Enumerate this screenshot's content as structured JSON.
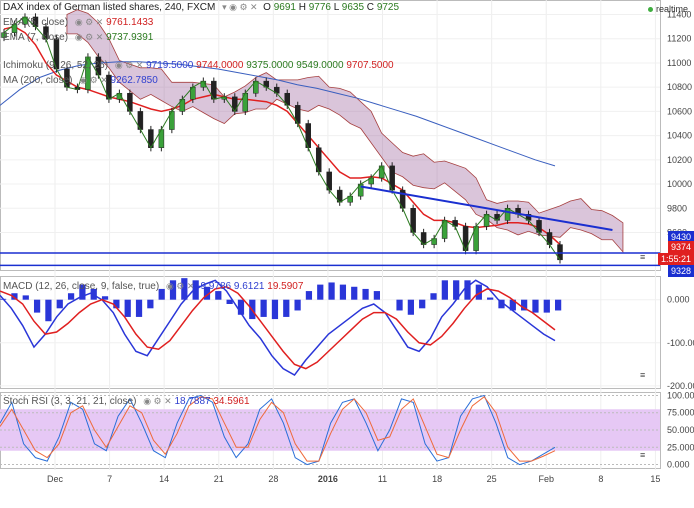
{
  "header": {
    "title": "DAX index of German listed shares, 240, FXCM",
    "ohlc": {
      "o_label": "O",
      "o": "9691",
      "h_label": "H",
      "h": "9776",
      "l_label": "L",
      "l": "9635",
      "c_label": "C",
      "c": "9725"
    },
    "realtime": "realtime"
  },
  "indicators": {
    "ema5": {
      "label": "EMA (5, close)",
      "value": "9761.1433"
    },
    "ema7": {
      "label": "EMA (7, close)",
      "value": "9737.9391"
    },
    "ichimoku": {
      "label": "Ichimoku (9, 26, 52, 26)",
      "v1": "9719.5000",
      "v2": "9744.0000",
      "v3": "9375.0000",
      "v4": "9549.0000",
      "v5": "9707.5000"
    },
    "ma200": {
      "label": "MA (200, close)",
      "value": "9262.7850"
    },
    "macd": {
      "label": "MACD (12, 26, close, 9, false, true)",
      "v1": "-9.9786",
      "v2": "9.6121",
      "v3": "19.5907"
    },
    "stoch": {
      "label": "Stoch RSI (3, 3, 21, 21, close)",
      "v1": "18.7887",
      "v2": "34.5961"
    }
  },
  "price_tags": [
    {
      "value": "9430",
      "color": "#1a2fd0"
    },
    {
      "value": "9374",
      "color": "#e02020"
    },
    {
      "value": "1:55:21",
      "color": "#e02020"
    },
    {
      "value": "9328",
      "color": "#1a2fd0"
    }
  ],
  "chart_data": [
    {
      "type": "candlestick",
      "title": "DAX index of German listed shares, 240, FXCM",
      "x_ticks": [
        "Dec",
        "7",
        "14",
        "21",
        "28",
        "2016",
        "11",
        "18",
        "25",
        "Feb",
        "8",
        "15"
      ],
      "y_ticks": [
        11400,
        11200,
        11000,
        10800,
        10600,
        10400,
        10200,
        10000,
        9800,
        9600
      ],
      "ylim": [
        9290,
        11520
      ],
      "close_approx": [
        11250,
        11320,
        11380,
        11300,
        11200,
        10950,
        10800,
        10780,
        11050,
        10900,
        10700,
        10750,
        10600,
        10450,
        10300,
        10450,
        10600,
        10700,
        10800,
        10850,
        10700,
        10720,
        10600,
        10750,
        10850,
        10800,
        10750,
        10650,
        10500,
        10300,
        10100,
        9950,
        9850,
        9900,
        10000,
        10050,
        10150,
        9950,
        9800,
        9600,
        9500,
        9550,
        9700,
        9650,
        9450,
        9650,
        9750,
        9700,
        9800,
        9750,
        9700,
        9600,
        9500,
        9374
      ],
      "horizontal_levels": [
        9430,
        9328
      ],
      "trendline": {
        "from": [
          34,
          9980
        ],
        "to": [
          58,
          9620
        ]
      },
      "ema_values_approx": [
        11280,
        11300,
        11250,
        11150,
        11000,
        10900,
        10850,
        10800,
        10780,
        10750,
        10720,
        10700,
        10680,
        10650,
        10620,
        10600,
        10620,
        10650,
        10700,
        10720,
        10740,
        10720,
        10700,
        10700,
        10690,
        10680,
        10650,
        10600,
        10500,
        10400,
        10300,
        10200,
        10100,
        10050,
        10050,
        10060,
        10050,
        10000,
        9950,
        9850,
        9750,
        9700,
        9700,
        9680,
        9650,
        9640,
        9650,
        9660,
        9680,
        9680,
        9670,
        9640,
        9580,
        9500
      ],
      "ma200_values_approx": [
        10650,
        10780,
        10880,
        10940,
        10980,
        11000,
        11010,
        11010,
        11000,
        10990,
        10970,
        10950,
        10920,
        10890,
        10860,
        10820,
        10790,
        10750,
        10710,
        10660,
        10610,
        10560,
        10500,
        10440,
        10380,
        10320,
        10260,
        10200,
        10150
      ]
    },
    {
      "type": "line",
      "title": "MACD (12, 26, close, 9, false, true)",
      "y_ticks": [
        0,
        -100,
        -200
      ],
      "ylim": [
        -205,
        55
      ],
      "series": [
        {
          "name": "macd",
          "values": [
            10,
            -20,
            -60,
            -110,
            -80,
            -40,
            -10,
            5,
            15,
            0,
            -30,
            -80,
            -120,
            -130,
            -90,
            -50,
            -10,
            20,
            35,
            45,
            20,
            -20,
            -60,
            -90,
            -130,
            -160,
            -175,
            -140,
            -110,
            -80,
            -60,
            -40,
            -20,
            -10,
            -30,
            -70,
            -110,
            -120,
            -90,
            -40,
            -10,
            25,
            45,
            30,
            0,
            -20,
            -40,
            -60,
            -80,
            -95
          ]
        },
        {
          "name": "signal",
          "values": [
            20,
            10,
            -10,
            -50,
            -80,
            -75,
            -55,
            -30,
            -10,
            0,
            -10,
            -40,
            -80,
            -110,
            -115,
            -95,
            -60,
            -25,
            5,
            25,
            30,
            15,
            -15,
            -50,
            -85,
            -120,
            -150,
            -160,
            -145,
            -120,
            -95,
            -70,
            -45,
            -30,
            -30,
            -45,
            -75,
            -100,
            -105,
            -85,
            -55,
            -20,
            10,
            25,
            20,
            5,
            -15,
            -30,
            -50,
            -70
          ]
        }
      ],
      "histogram": [
        2,
        15,
        10,
        -30,
        -50,
        -20,
        15,
        35,
        25,
        8,
        -20,
        -40,
        -40,
        -20,
        25,
        45,
        50,
        45,
        30,
        20,
        -10,
        -35,
        -45,
        -40,
        -45,
        -40,
        -25,
        20,
        35,
        40,
        35,
        30,
        25,
        20,
        0,
        -25,
        -35,
        -20,
        15,
        45,
        45,
        45,
        35,
        5,
        -20,
        -25,
        -25,
        -30,
        -30,
        -25
      ]
    },
    {
      "type": "line",
      "title": "Stoch RSI (3, 3, 21, 21, close)",
      "y_ticks": [
        100,
        75,
        50,
        25,
        0
      ],
      "ylim": [
        -5,
        105
      ],
      "band": [
        20,
        80
      ],
      "series": [
        {
          "name": "k",
          "values": [
            60,
            90,
            30,
            10,
            5,
            40,
            90,
            80,
            30,
            20,
            70,
            95,
            60,
            20,
            10,
            60,
            95,
            100,
            90,
            40,
            10,
            30,
            80,
            95,
            60,
            10,
            0,
            5,
            60,
            90,
            95,
            60,
            20,
            50,
            95,
            90,
            30,
            5,
            10,
            70,
            95,
            100,
            60,
            10,
            0,
            5,
            15,
            25
          ]
        },
        {
          "name": "d",
          "values": [
            55,
            80,
            50,
            20,
            10,
            30,
            75,
            85,
            50,
            25,
            55,
            85,
            75,
            35,
            15,
            45,
            85,
            98,
            95,
            60,
            25,
            25,
            65,
            90,
            75,
            30,
            5,
            5,
            45,
            80,
            95,
            75,
            35,
            40,
            80,
            95,
            55,
            15,
            10,
            50,
            85,
            98,
            75,
            25,
            5,
            5,
            12,
            20
          ]
        }
      ]
    }
  ]
}
